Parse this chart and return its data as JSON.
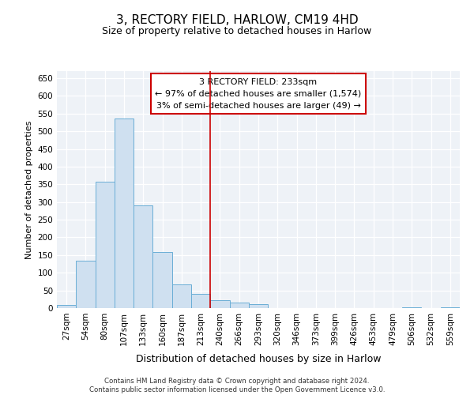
{
  "title": "3, RECTORY FIELD, HARLOW, CM19 4HD",
  "subtitle": "Size of property relative to detached houses in Harlow",
  "xlabel": "Distribution of detached houses by size in Harlow",
  "ylabel": "Number of detached properties",
  "bar_color": "#cfe0f0",
  "bar_edge_color": "#6aaed6",
  "annotation_line_color": "#cc0000",
  "annotation_box_color": "#cc0000",
  "annotation_line1": "3 RECTORY FIELD: 233sqm",
  "annotation_line2": "← 97% of detached houses are smaller (1,574)",
  "annotation_line3": "3% of semi-detached houses are larger (49) →",
  "footer_line1": "Contains HM Land Registry data © Crown copyright and database right 2024.",
  "footer_line2": "Contains public sector information licensed under the Open Government Licence v3.0.",
  "bin_labels": [
    "27sqm",
    "54sqm",
    "80sqm",
    "107sqm",
    "133sqm",
    "160sqm",
    "187sqm",
    "213sqm",
    "240sqm",
    "266sqm",
    "293sqm",
    "320sqm",
    "346sqm",
    "373sqm",
    "399sqm",
    "426sqm",
    "453sqm",
    "479sqm",
    "506sqm",
    "532sqm",
    "559sqm"
  ],
  "bar_heights": [
    10,
    135,
    358,
    535,
    290,
    158,
    67,
    40,
    22,
    15,
    12,
    0,
    0,
    0,
    0,
    0,
    0,
    0,
    3,
    0,
    3
  ],
  "ylim": [
    0,
    670
  ],
  "yticks": [
    0,
    50,
    100,
    150,
    200,
    250,
    300,
    350,
    400,
    450,
    500,
    550,
    600,
    650
  ],
  "vline_bin": 8,
  "background_color": "#eef2f7",
  "grid_color": "#ffffff",
  "title_fontsize": 11,
  "subtitle_fontsize": 9,
  "tick_fontsize": 7.5,
  "ylabel_fontsize": 8,
  "xlabel_fontsize": 9
}
